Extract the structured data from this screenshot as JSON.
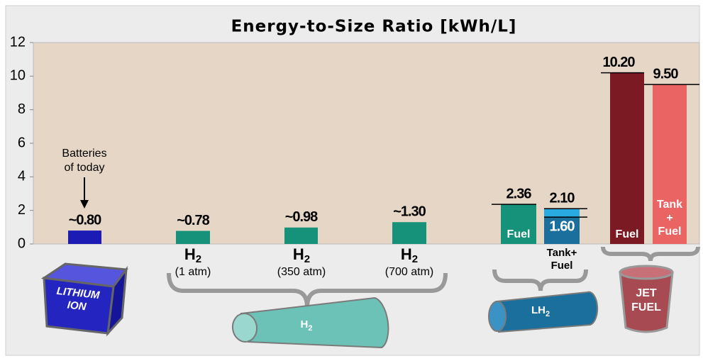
{
  "chart_data": {
    "type": "bar",
    "title": "Energy-to-Size Ratio [kWh/L]",
    "ylim": [
      0,
      12
    ],
    "yticks": [
      0,
      2,
      4,
      6,
      8,
      10,
      12
    ],
    "bars": [
      {
        "value": 0.8,
        "value_label": "~0.80",
        "color": "#1c1cb4"
      },
      {
        "value": 0.78,
        "value_label": "~0.78",
        "color": "#16917a"
      },
      {
        "value": 0.98,
        "value_label": "~0.98",
        "color": "#16917a"
      },
      {
        "value": 1.3,
        "value_label": "~1.30",
        "color": "#16917a"
      },
      {
        "value": 2.36,
        "value_label": "2.36",
        "color": "#16917a",
        "inner_label": "Fuel"
      },
      {
        "value": 2.1,
        "value_label": "2.10",
        "color": "#29abe2"
      },
      {
        "value": 1.6,
        "value_label": "1.60",
        "color": "#1b6f9c"
      },
      {
        "value": 10.2,
        "value_label": "10.20",
        "color": "#7b1a22",
        "inner_label": "Fuel"
      },
      {
        "value": 9.5,
        "value_label": "9.50",
        "color": "#ea6464",
        "inner_label": [
          "Tank",
          "+",
          "Fuel"
        ]
      }
    ],
    "annotation": [
      "Batteries",
      "of today"
    ],
    "category_labels": [
      {
        "main": "H",
        "sub": "2",
        "note": "(1 atm)"
      },
      {
        "main": "H",
        "sub": "2",
        "note": "(350 atm)"
      },
      {
        "main": "H",
        "sub": "2",
        "note": "(700 atm)"
      }
    ],
    "lh2_label": [
      "Tank+",
      "Fuel"
    ],
    "icons": {
      "lithium": [
        "LITHIUM",
        "ION"
      ],
      "h2": {
        "main": "H",
        "sub": "2"
      },
      "lh2": {
        "main": "LH",
        "sub": "2"
      },
      "jet": [
        "JET",
        "FUEL"
      ]
    }
  }
}
